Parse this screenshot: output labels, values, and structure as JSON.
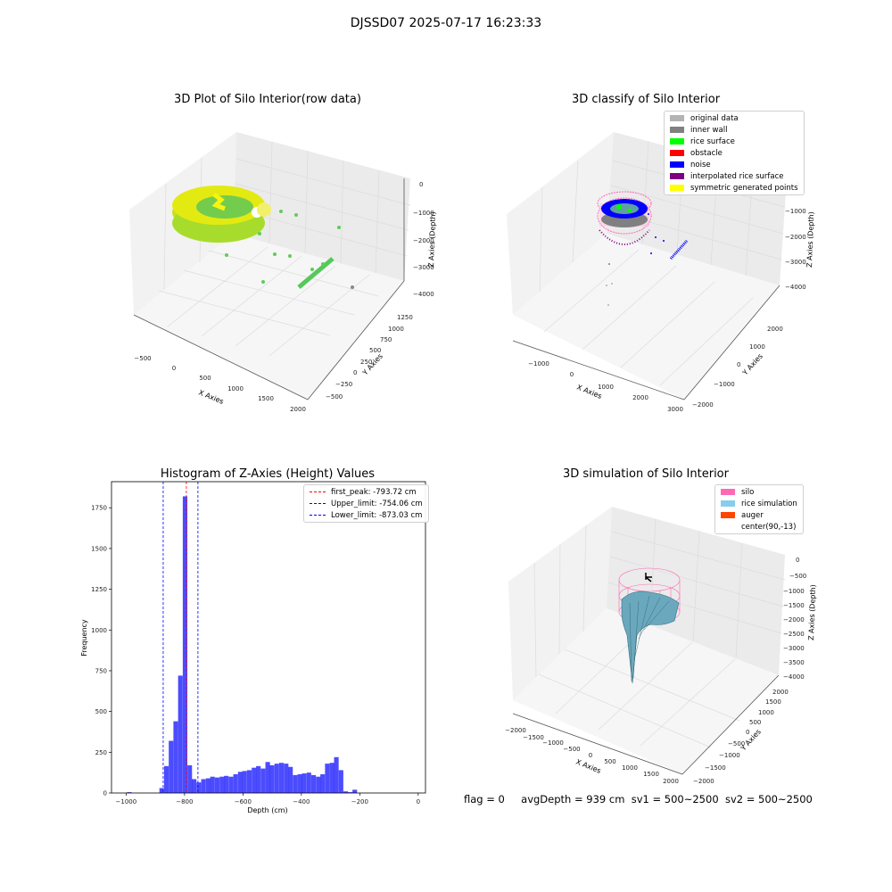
{
  "figure_title": "DJSSD07 2025-07-17 16:23:33",
  "footer": {
    "flag": "flag = 0",
    "avg_depth": "avgDepth = 939 cm",
    "sv1": "sv1 = 500~2500",
    "sv2": "sv2 = 500~2500"
  },
  "colors": {
    "original": "#b3b3b3",
    "inner_wall": "#808080",
    "rice_surface": "#00ff00",
    "obstacle": "#ff0000",
    "noise": "#0000ff",
    "interp": "#800080",
    "symmetric": "#ffff00",
    "silo": "#ff69b4",
    "rice_sim": "#87ceeb",
    "auger": "#ff4500",
    "hist": "#0000ff"
  },
  "chart_data": [
    {
      "type": "scatter3d",
      "title": "3D Plot of Silo Interior(row data)",
      "xlabel": "X Axies",
      "ylabel": "Y Axies",
      "zlabel": "Z Axies (Depth)",
      "xticks": [
        "−500",
        "0",
        "500",
        "1000",
        "1500",
        "2000"
      ],
      "yticks": [
        "−500",
        "−250",
        "0",
        "250",
        "500",
        "750",
        "1000",
        "1250"
      ],
      "zticks": [
        "0",
        "−1000",
        "−2000",
        "−3000",
        "−4000"
      ]
    },
    {
      "type": "scatter3d",
      "title": "3D classify of Silo Interior",
      "xlabel": "X Axies",
      "ylabel": "Y Axies",
      "zlabel": "Z Axies (Depth)",
      "xticks": [
        "−1000",
        "0",
        "1000",
        "2000",
        "3000"
      ],
      "yticks": [
        "−2000",
        "−1000",
        "0",
        "1000",
        "2000"
      ],
      "zticks": [
        "0",
        "−1000",
        "−2000",
        "−3000",
        "−4000"
      ],
      "legend": [
        {
          "label": "original data",
          "color": "#b3b3b3"
        },
        {
          "label": "inner wall",
          "color": "#808080"
        },
        {
          "label": "rice surface",
          "color": "#00ff00"
        },
        {
          "label": "obstacle",
          "color": "#ff0000"
        },
        {
          "label": "noise",
          "color": "#0000ff"
        },
        {
          "label": "interpolated rice surface",
          "color": "#800080"
        },
        {
          "label": "symmetric generated points",
          "color": "#ffff00"
        }
      ]
    },
    {
      "type": "bar",
      "title": "Histogram of Z-Axies (Height) Values",
      "xlabel": "Depth (cm)",
      "ylabel": "Frequency",
      "xlim": [
        -1050,
        25
      ],
      "ylim": [
        0,
        1910
      ],
      "bin_width": 15.7,
      "bins": [
        {
          "x": -997,
          "v": 5
        },
        {
          "x": -886,
          "v": 30
        },
        {
          "x": -870,
          "v": 165
        },
        {
          "x": -854,
          "v": 320
        },
        {
          "x": -838,
          "v": 440
        },
        {
          "x": -822,
          "v": 720
        },
        {
          "x": -806,
          "v": 1820
        },
        {
          "x": -790,
          "v": 170
        },
        {
          "x": -775,
          "v": 85
        },
        {
          "x": -759,
          "v": 65
        },
        {
          "x": -743,
          "v": 85
        },
        {
          "x": -727,
          "v": 90
        },
        {
          "x": -712,
          "v": 100
        },
        {
          "x": -696,
          "v": 95
        },
        {
          "x": -680,
          "v": 100
        },
        {
          "x": -665,
          "v": 105
        },
        {
          "x": -649,
          "v": 100
        },
        {
          "x": -633,
          "v": 115
        },
        {
          "x": -617,
          "v": 130
        },
        {
          "x": -602,
          "v": 135
        },
        {
          "x": -586,
          "v": 140
        },
        {
          "x": -570,
          "v": 155
        },
        {
          "x": -555,
          "v": 165
        },
        {
          "x": -539,
          "v": 150
        },
        {
          "x": -523,
          "v": 190
        },
        {
          "x": -508,
          "v": 170
        },
        {
          "x": -492,
          "v": 180
        },
        {
          "x": -476,
          "v": 185
        },
        {
          "x": -460,
          "v": 180
        },
        {
          "x": -445,
          "v": 160
        },
        {
          "x": -429,
          "v": 110
        },
        {
          "x": -413,
          "v": 115
        },
        {
          "x": -398,
          "v": 120
        },
        {
          "x": -382,
          "v": 125
        },
        {
          "x": -366,
          "v": 110
        },
        {
          "x": -350,
          "v": 100
        },
        {
          "x": -335,
          "v": 115
        },
        {
          "x": -319,
          "v": 180
        },
        {
          "x": -303,
          "v": 185
        },
        {
          "x": -288,
          "v": 220
        },
        {
          "x": -272,
          "v": 140
        },
        {
          "x": -256,
          "v": 10
        },
        {
          "x": -241,
          "v": 5
        },
        {
          "x": -225,
          "v": 20
        }
      ],
      "xticks": [
        "−1000",
        "−800",
        "−600",
        "−400",
        "−200",
        "0"
      ],
      "yticks": [
        "0",
        "250",
        "500",
        "750",
        "1000",
        "1250",
        "1500",
        "1750"
      ],
      "vlines": [
        {
          "x": -793.72,
          "label": "first_peak: -793.72 cm",
          "color": "#ff0000"
        },
        {
          "x": -754.06,
          "label": "Upper_limit: -754.06 cm",
          "color": "#0000ff"
        },
        {
          "x": -873.03,
          "label": "Lower_limit: -873.03 cm",
          "color": "#0000ff"
        }
      ]
    },
    {
      "type": "surface3d",
      "title": "3D simulation of Silo Interior",
      "xlabel": "X Axies",
      "ylabel": "Y Axies",
      "zlabel": "Z Axies (Depth)",
      "xticks": [
        "−2000",
        "−1500",
        "−1000",
        "−500",
        "0",
        "500",
        "1000",
        "1500",
        "2000"
      ],
      "yticks": [
        "−2000",
        "−1500",
        "−1000",
        "−500",
        "0",
        "500",
        "1000",
        "1500",
        "2000"
      ],
      "zticks": [
        "0",
        "−500",
        "−1000",
        "−1500",
        "−2000",
        "−2500",
        "−3000",
        "−3500",
        "−4000"
      ],
      "legend": [
        {
          "label": "silo",
          "color": "#ff69b4"
        },
        {
          "label": "rice simulation",
          "color": "#87ceeb"
        },
        {
          "label": "auger",
          "color": "#ff4500"
        },
        {
          "label": "center(90,-13)",
          "color": ""
        }
      ]
    }
  ]
}
